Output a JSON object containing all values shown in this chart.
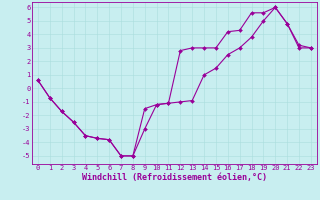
{
  "xlabel": "Windchill (Refroidissement éolien,°C)",
  "background_color": "#c8eef0",
  "line_color": "#990099",
  "grid_color": "#aadddd",
  "xlim": [
    -0.5,
    23.5
  ],
  "ylim": [
    -5.6,
    6.4
  ],
  "xticks": [
    0,
    1,
    2,
    3,
    4,
    5,
    6,
    7,
    8,
    9,
    10,
    11,
    12,
    13,
    14,
    15,
    16,
    17,
    18,
    19,
    20,
    21,
    22,
    23
  ],
  "yticks": [
    -5,
    -4,
    -3,
    -2,
    -1,
    0,
    1,
    2,
    3,
    4,
    5,
    6
  ],
  "path1_x": [
    0,
    1,
    2,
    3,
    4,
    5,
    6,
    7,
    8,
    9,
    10,
    11,
    12,
    13,
    14,
    15,
    16,
    17,
    18,
    19,
    20,
    21,
    22,
    23
  ],
  "path1_y": [
    0.6,
    -0.7,
    -1.7,
    -2.5,
    -3.5,
    -3.7,
    -3.8,
    -5.0,
    -5.0,
    -3.0,
    -1.2,
    -1.1,
    2.8,
    3.0,
    3.0,
    3.0,
    4.2,
    4.3,
    5.6,
    5.6,
    6.0,
    4.8,
    3.0,
    3.0
  ],
  "path2_x": [
    0,
    1,
    2,
    3,
    4,
    5,
    6,
    7,
    8,
    9,
    10,
    11,
    12,
    13,
    14,
    15,
    16,
    17,
    18,
    19,
    20,
    21,
    22,
    23
  ],
  "path2_y": [
    0.6,
    -0.7,
    -1.7,
    -2.5,
    -3.5,
    -3.7,
    -3.8,
    -5.0,
    -5.0,
    -1.5,
    -1.2,
    -1.1,
    -1.0,
    -0.9,
    1.0,
    1.5,
    2.5,
    3.0,
    3.8,
    5.0,
    6.0,
    4.8,
    3.2,
    3.0
  ],
  "tick_fontsize": 5.0,
  "xlabel_fontsize": 6.0,
  "linewidth": 0.8,
  "markersize": 2.0
}
